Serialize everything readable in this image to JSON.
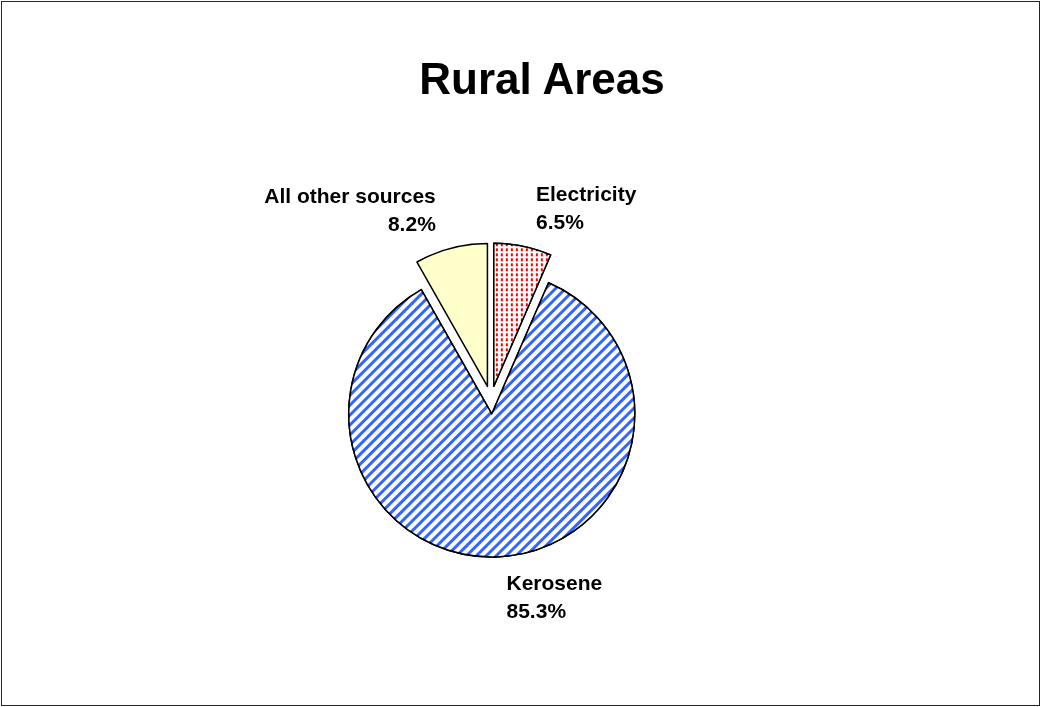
{
  "chart_data": {
    "type": "pie",
    "title": "Rural Areas",
    "categories": [
      "Electricity",
      "Kerosene",
      "All other sources"
    ],
    "values": [
      6.5,
      85.3,
      8.2
    ],
    "value_labels": [
      "6.5%",
      "85.3%",
      "8.2%"
    ],
    "colors": [
      "#ff0000",
      "#3366ff",
      "#ffffcc"
    ],
    "legend": false
  }
}
